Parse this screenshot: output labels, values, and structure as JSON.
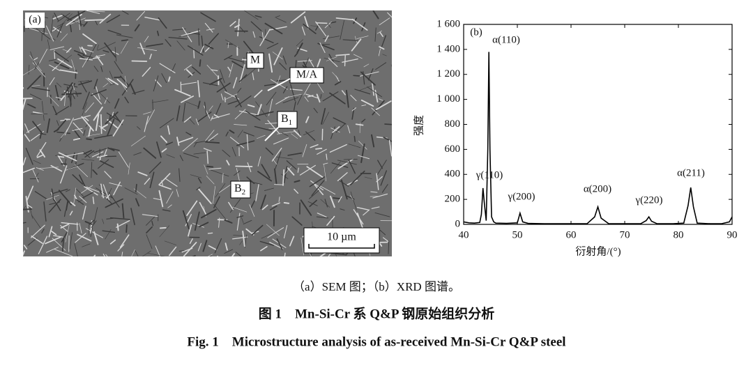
{
  "sem": {
    "panel_label": "(a)",
    "labels": [
      "M",
      "M/A",
      {
        "main": "B",
        "sub": "1"
      },
      {
        "main": "B",
        "sub": "2"
      }
    ],
    "scale_bar": "10 µm"
  },
  "chart_data": {
    "type": "line",
    "panel_label": "(b)",
    "x_label": "衍射角/(°)",
    "y_label": "强度",
    "x": [
      40,
      41,
      42,
      43,
      43.3,
      43.6,
      43.9,
      44.2,
      44.5,
      44.7,
      44.9,
      45.2,
      45.6,
      46,
      48,
      50,
      50.5,
      51,
      52,
      55,
      60,
      63,
      64.4,
      65,
      65.6,
      67,
      70,
      73,
      74,
      74.5,
      75,
      76,
      79,
      81,
      81.8,
      82.3,
      82.8,
      83.5,
      86,
      88,
      89.5,
      90
    ],
    "series": [
      {
        "color": "#000000",
        "values": [
          20,
          12,
          10,
          15,
          80,
          290,
          150,
          30,
          600,
          1380,
          600,
          60,
          20,
          10,
          8,
          12,
          90,
          20,
          8,
          5,
          5,
          6,
          60,
          140,
          50,
          6,
          5,
          6,
          30,
          60,
          25,
          6,
          5,
          10,
          150,
          295,
          140,
          10,
          5,
          5,
          20,
          60
        ]
      }
    ],
    "xlim": [
      40,
      90
    ],
    "ylim": [
      0,
      1600
    ],
    "xticks": [
      40,
      50,
      60,
      70,
      80,
      90
    ],
    "yticks": [
      0,
      200,
      400,
      600,
      800,
      {
        "value": 1000,
        "label": "1 000"
      },
      {
        "value": 1200,
        "label": "1 200"
      },
      {
        "value": 1400,
        "label": "1 400"
      },
      {
        "value": 1600,
        "label": "1 600"
      }
    ],
    "annotations": [
      "α(110)",
      "γ(110)",
      "γ(200)",
      "α(200)",
      "γ(220)",
      "α(211)"
    ]
  },
  "caption": {
    "subcaption": "（a）SEM 图；（b）XRD 图谱。",
    "chinese": "图 1　Mn-Si-Cr 系 Q&P 钢原始组织分析",
    "english": "Fig. 1　Microstructure analysis of as-received Mn-Si-Cr Q&P steel"
  }
}
